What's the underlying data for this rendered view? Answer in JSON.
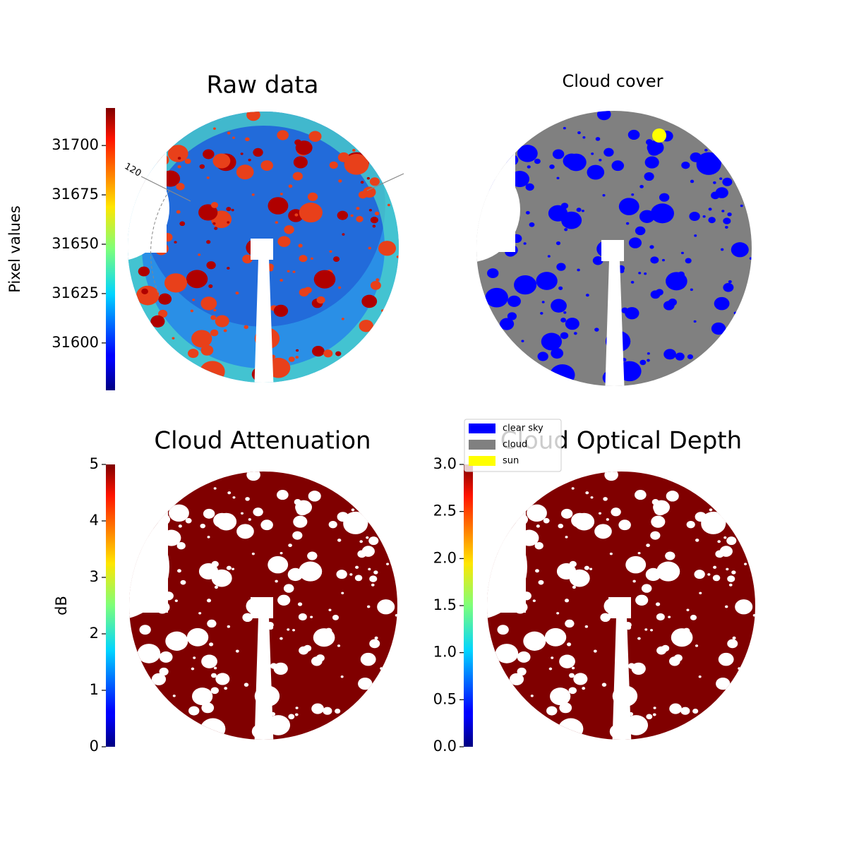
{
  "chart_data": [
    {
      "type": "image",
      "title": "Raw data",
      "ylabel": "Pixel values",
      "ylim": [
        31576,
        31719
      ],
      "yticks": [
        31600,
        31625,
        31650,
        31675,
        31700
      ],
      "colormap": "jet",
      "annotations": [
        "120"
      ]
    },
    {
      "type": "image",
      "title": "Cloud cover",
      "legend": [
        {
          "name": "clear sky",
          "color": "#0000ff"
        },
        {
          "name": "cloud",
          "color": "#808080"
        },
        {
          "name": "sun",
          "color": "#ffff00"
        }
      ]
    },
    {
      "type": "image",
      "title": "Cloud Attenuation",
      "ylabel": "dB",
      "ylim": [
        0,
        5
      ],
      "yticks": [
        0,
        1,
        2,
        3,
        4,
        5
      ],
      "colormap": "jet"
    },
    {
      "type": "image",
      "title": "Cloud Optical Depth",
      "ylim": [
        0,
        3
      ],
      "yticks": [
        {
          "value": 0,
          "label": "0.0"
        },
        {
          "value": 0.5,
          "label": "0.5"
        },
        {
          "value": 1,
          "label": "1.0"
        },
        {
          "value": 1.5,
          "label": "1.5"
        },
        {
          "value": 2,
          "label": "2.0"
        },
        {
          "value": 2.5,
          "label": "2.5"
        },
        {
          "value": 3,
          "label": "3.0"
        }
      ],
      "colormap": "jet"
    }
  ]
}
